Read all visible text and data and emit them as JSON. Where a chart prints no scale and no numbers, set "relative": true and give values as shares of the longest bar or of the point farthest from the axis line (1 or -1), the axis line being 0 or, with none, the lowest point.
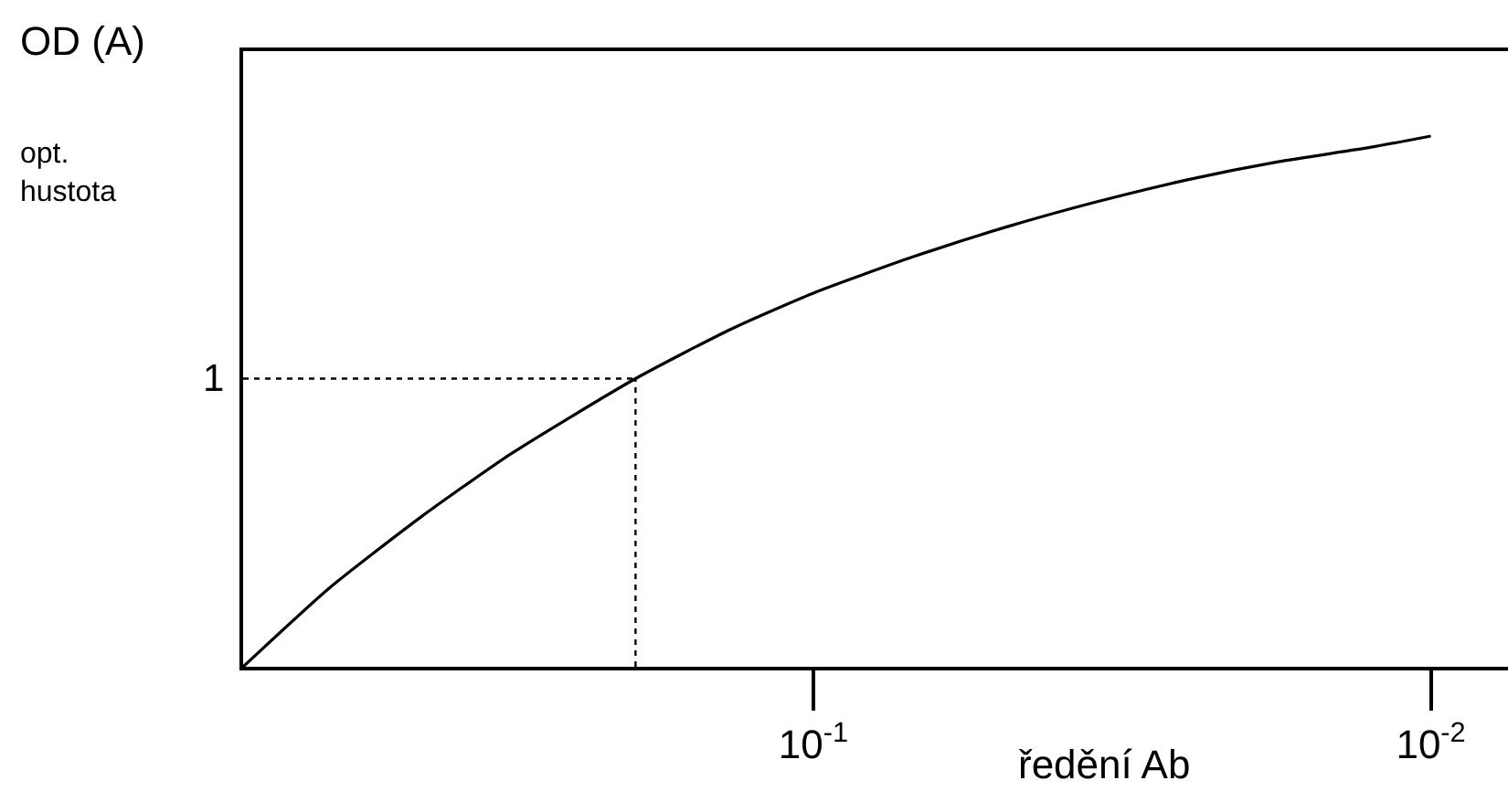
{
  "chart_data": {
    "type": "line",
    "relative": true,
    "log": "x",
    "xlabel": "ředění Ab",
    "ylabel": "OD (A)",
    "annotations": [
      "opt.\nhustota"
    ],
    "x": [
      0.838,
      0.608,
      0.432,
      0.308,
      0.194,
      0.136,
      0.1,
      0.0687,
      0.0489,
      0.0348,
      0.0247,
      0.0176,
      0.0125,
      0.01
    ],
    "series": [
      {
        "color": "#000000",
        "values": [
          0,
          0.148,
          0.282,
          0.402,
          0.543,
          0.636,
          0.704,
          0.773,
          0.828,
          0.876,
          0.918,
          0.952,
          0.979,
          1
        ]
      }
    ],
    "xlim": [
      0.838,
      0.0075
    ],
    "xticks": [
      {
        "value": 0.1,
        "label": "10$^{-1}$"
      },
      {
        "value": 0.01,
        "label": "10$^{-2}$"
      }
    ],
    "ref_lines": [
      {
        "axis": "y",
        "value": 0.543,
        "label": "1",
        "line_style": "dotted",
        "color": "#000000"
      },
      {
        "axis": "x",
        "value": 0.194,
        "label": null,
        "line_style": "dotted",
        "color": "#000000"
      }
    ],
    "marker": "none",
    "line_style": "solid"
  }
}
